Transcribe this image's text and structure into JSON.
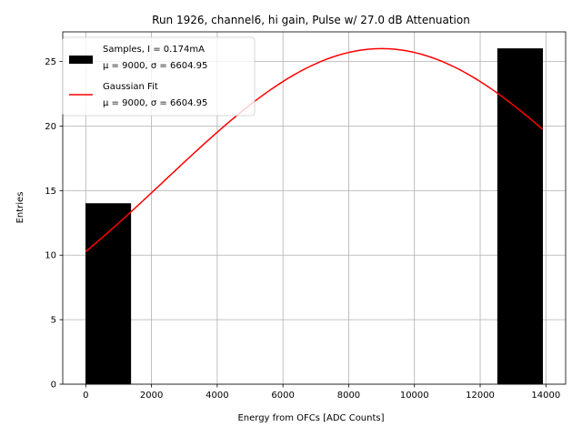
{
  "chart_data": {
    "type": "bar",
    "title": "Run 1926, channel6, hi gain, Pulse w/ 27.0 dB Attenuation",
    "xlabel": "Energy from OFCs [ADC Counts]",
    "ylabel": "Entries",
    "xlim": [
      -700,
      14600
    ],
    "ylim": [
      0,
      27.3
    ],
    "xticks": [
      0,
      2000,
      4000,
      6000,
      8000,
      10000,
      12000,
      14000
    ],
    "yticks": [
      0,
      5,
      10,
      15,
      20,
      25
    ],
    "grid": true,
    "legend_position": "top-left",
    "histogram": {
      "name": "Samples, I = 0.174mA",
      "name_line2": "μ = 9000, σ = 6604.95",
      "color": "#000000",
      "bins": [
        {
          "x0": 0,
          "x1": 1370,
          "count": 14
        },
        {
          "x0": 12530,
          "x1": 13900,
          "count": 26
        }
      ]
    },
    "fit": {
      "name": "Gaussian Fit",
      "name_line2": "μ = 9000, σ = 6604.95",
      "color": "#ff0000",
      "mu": 9000,
      "sigma": 6604.95,
      "amplitude": 26,
      "x_range": [
        0,
        13900
      ]
    }
  }
}
